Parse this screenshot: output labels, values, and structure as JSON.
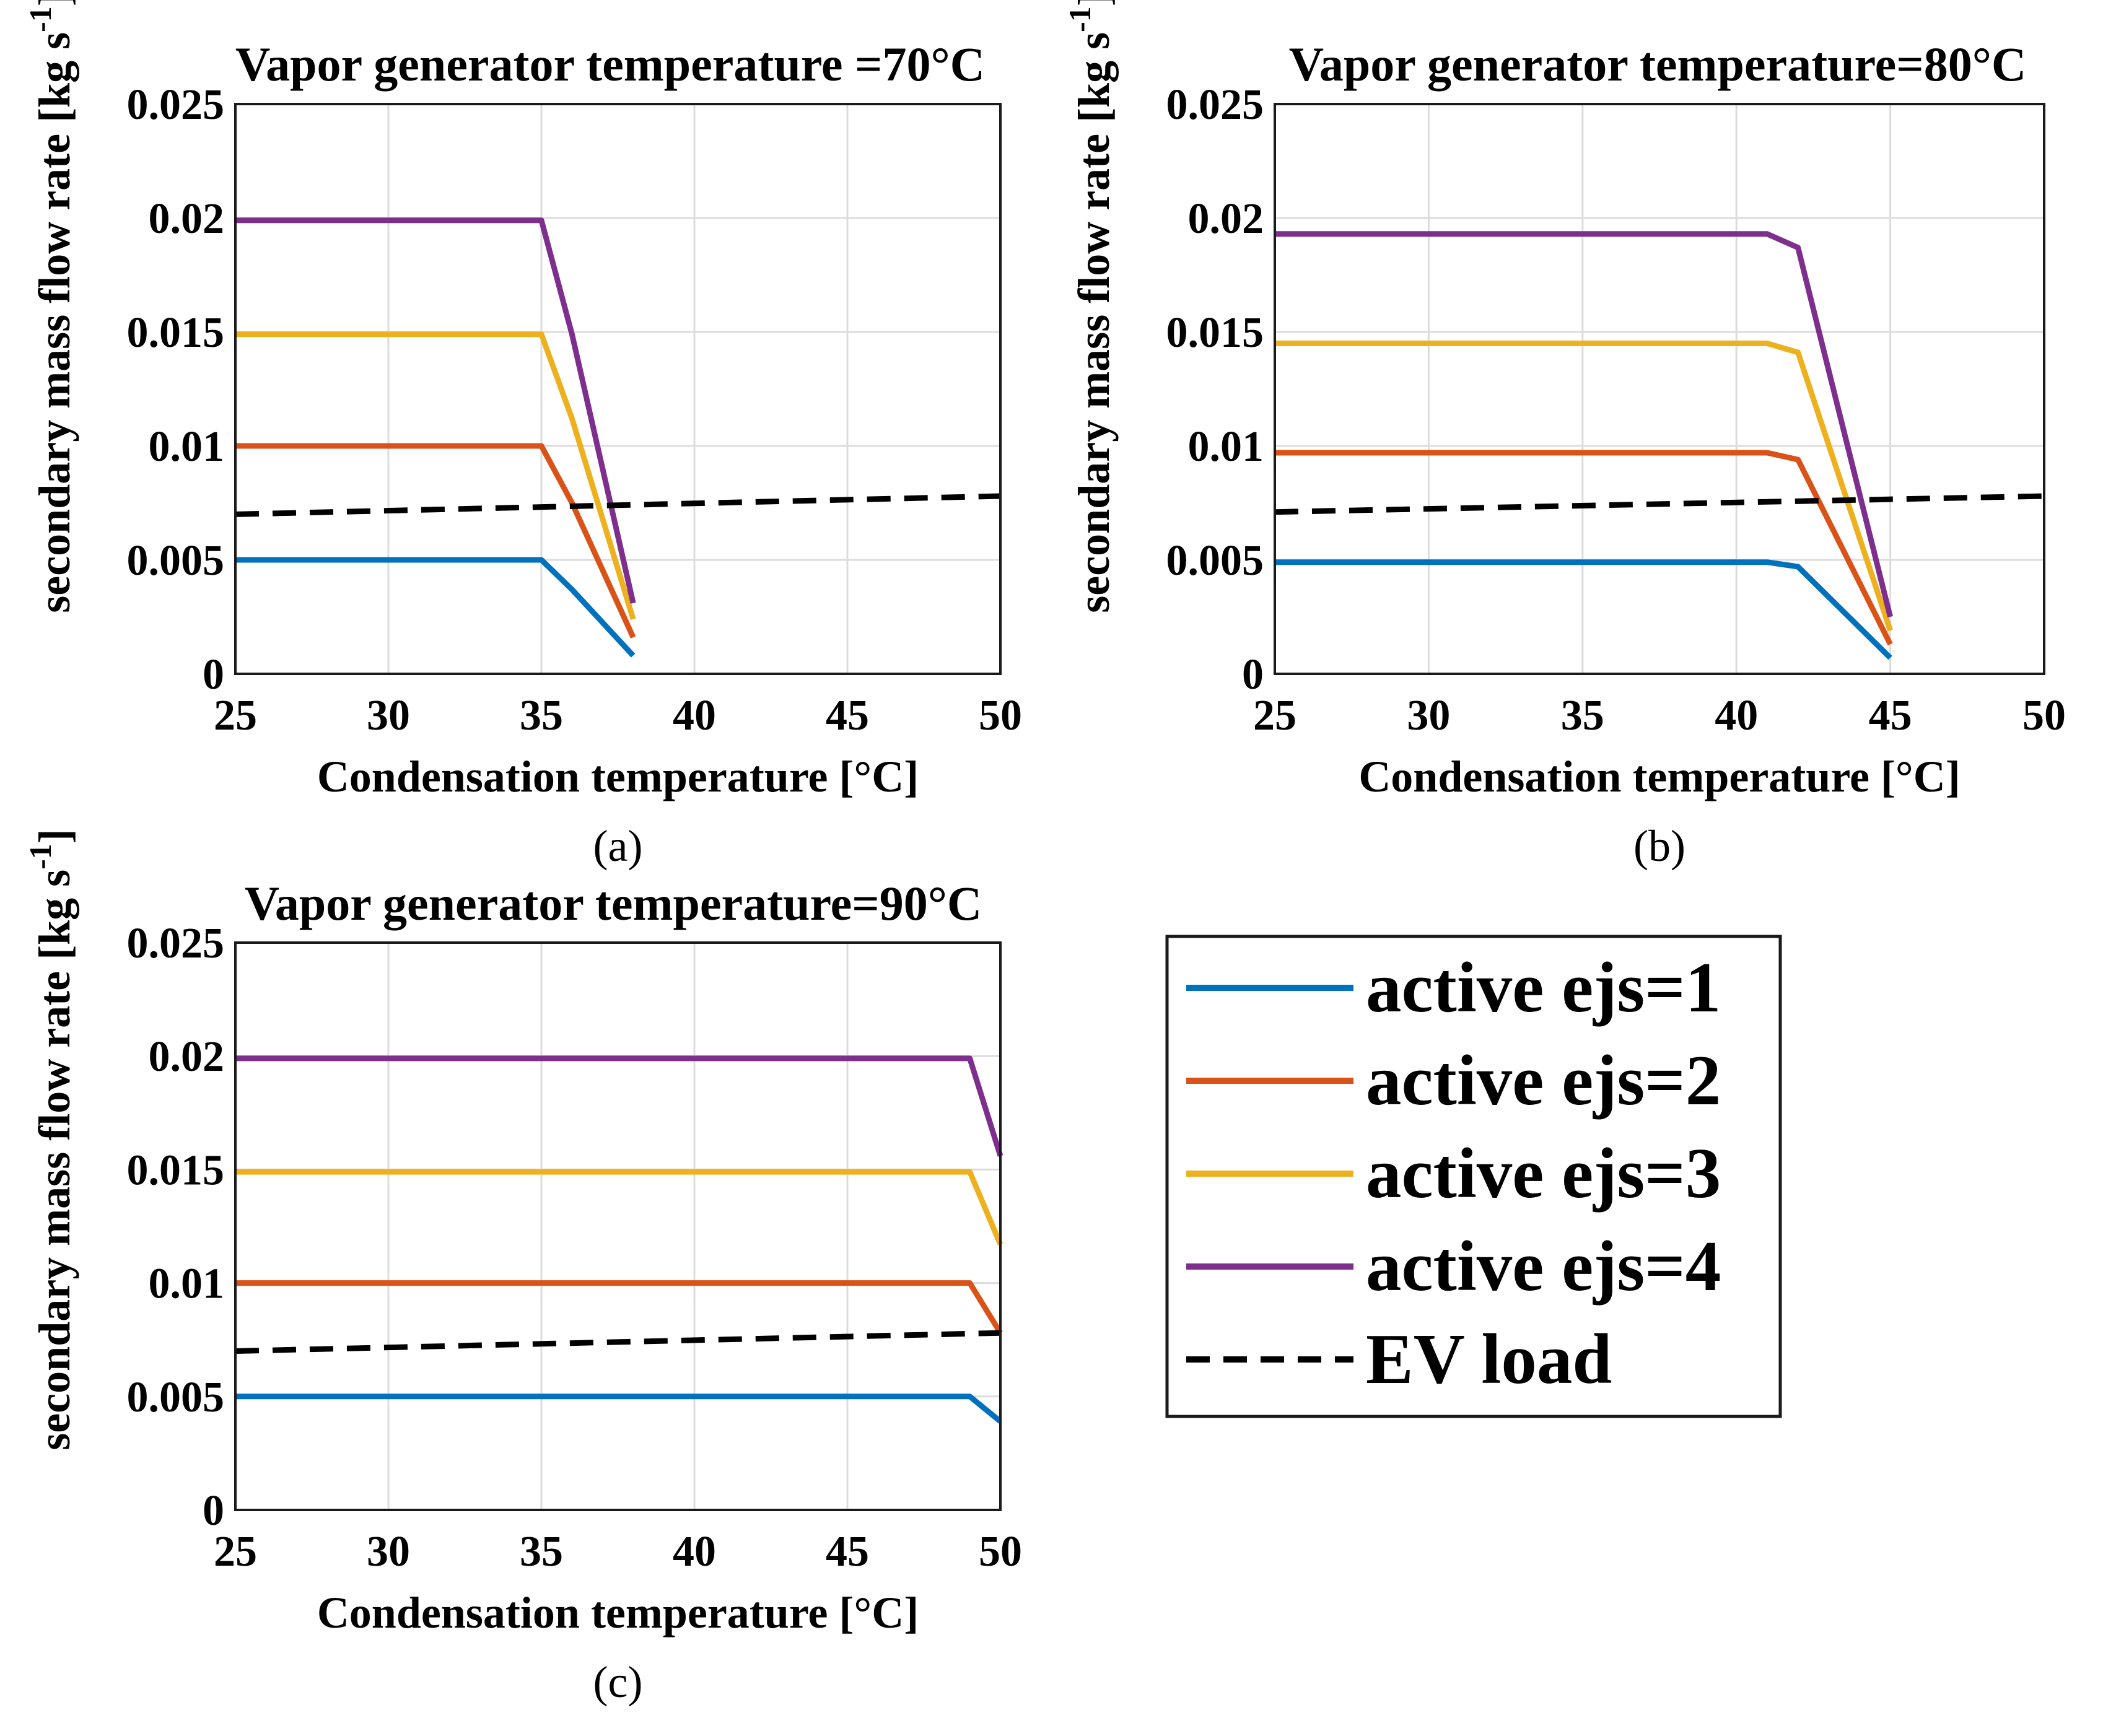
{
  "chart_data": [
    {
      "type": "line",
      "panel": "(a)",
      "title": "Vapor generator temperature =70°C",
      "xlabel": "Condensation temperature [°C]",
      "ylabel": "secondary mass flow rate [kg s",
      "ylabel_superscript": "-1",
      "ylabel_end": "]",
      "xlim": [
        25,
        50
      ],
      "ylim": [
        0,
        0.025
      ],
      "xticks": [
        "25",
        "30",
        "35",
        "40",
        "45",
        "50"
      ],
      "yticks": [
        "0",
        "0.005",
        "0.01",
        "0.015",
        "0.02",
        "0.025"
      ],
      "grid": true,
      "series": [
        {
          "name": "active ejs=1",
          "x": [
            25,
            35,
            36,
            38
          ],
          "values": [
            0.005,
            0.005,
            0.0037,
            0.0008
          ]
        },
        {
          "name": "active ejs=2",
          "x": [
            25,
            35,
            36,
            38
          ],
          "values": [
            0.01,
            0.01,
            0.0075,
            0.0016
          ]
        },
        {
          "name": "active ejs=3",
          "x": [
            25,
            35,
            36,
            38
          ],
          "values": [
            0.0149,
            0.0149,
            0.0112,
            0.0024
          ]
        },
        {
          "name": "active ejs=4",
          "x": [
            25,
            35,
            36,
            38
          ],
          "values": [
            0.0199,
            0.0199,
            0.0149,
            0.0031
          ]
        },
        {
          "name": "EV load",
          "x": [
            25,
            50
          ],
          "values": [
            0.007,
            0.0078
          ]
        }
      ]
    },
    {
      "type": "line",
      "panel": "(b)",
      "title": "Vapor generator temperature=80°C",
      "xlabel": "Condensation temperature [°C]",
      "ylabel": "secondary mass flow rate [kg s",
      "ylabel_superscript": "-1",
      "ylabel_end": "]",
      "xlim": [
        25,
        50
      ],
      "ylim": [
        0,
        0.025
      ],
      "xticks": [
        "25",
        "30",
        "35",
        "40",
        "45",
        "50"
      ],
      "yticks": [
        "0",
        "0.005",
        "0.01",
        "0.015",
        "0.02",
        "0.025"
      ],
      "grid": true,
      "series": [
        {
          "name": "active ejs=1",
          "x": [
            25,
            41,
            42,
            45
          ],
          "values": [
            0.0049,
            0.0049,
            0.0047,
            0.0007
          ]
        },
        {
          "name": "active ejs=2",
          "x": [
            25,
            41,
            42,
            45
          ],
          "values": [
            0.0097,
            0.0097,
            0.0094,
            0.0013
          ]
        },
        {
          "name": "active ejs=3",
          "x": [
            25,
            41,
            42,
            45
          ],
          "values": [
            0.0145,
            0.0145,
            0.0141,
            0.0019
          ]
        },
        {
          "name": "active ejs=4",
          "x": [
            25,
            41,
            42,
            45
          ],
          "values": [
            0.0193,
            0.0193,
            0.0187,
            0.0025
          ]
        },
        {
          "name": "EV load",
          "x": [
            25,
            50
          ],
          "values": [
            0.0071,
            0.0078
          ]
        }
      ]
    },
    {
      "type": "line",
      "panel": "(c)",
      "title": "Vapor generator temperature=90°C",
      "xlabel": "Condensation temperature [°C]",
      "ylabel": "secondary mass flow rate [kg s",
      "ylabel_superscript": "-1",
      "ylabel_end": "]",
      "xlim": [
        25,
        50
      ],
      "ylim": [
        0,
        0.025
      ],
      "xticks": [
        "25",
        "30",
        "35",
        "40",
        "45",
        "50"
      ],
      "yticks": [
        "0",
        "0.005",
        "0.01",
        "0.015",
        "0.02",
        "0.025"
      ],
      "grid": true,
      "series": [
        {
          "name": "active ejs=1",
          "x": [
            25,
            49,
            50
          ],
          "values": [
            0.005,
            0.005,
            0.0039
          ]
        },
        {
          "name": "active ejs=2",
          "x": [
            25,
            49,
            50
          ],
          "values": [
            0.01,
            0.01,
            0.0078
          ]
        },
        {
          "name": "active ejs=3",
          "x": [
            25,
            49,
            50
          ],
          "values": [
            0.0149,
            0.0149,
            0.0117
          ]
        },
        {
          "name": "active ejs=4",
          "x": [
            25,
            49,
            50
          ],
          "values": [
            0.0199,
            0.0199,
            0.0156
          ]
        },
        {
          "name": "EV load",
          "x": [
            25,
            50
          ],
          "values": [
            0.007,
            0.0078
          ]
        }
      ]
    }
  ],
  "legend": {
    "placement": "bottom-right",
    "items": [
      {
        "label": "active ejs=1",
        "color": "#0072BD",
        "style": "solid"
      },
      {
        "label": "active ejs=2",
        "color": "#D95319",
        "style": "solid"
      },
      {
        "label": "active ejs=3",
        "color": "#EDB120",
        "style": "solid"
      },
      {
        "label": "active ejs=4",
        "color": "#7E2F8E",
        "style": "solid"
      },
      {
        "label": "EV load",
        "color": "#000000",
        "style": "dashed"
      }
    ]
  }
}
